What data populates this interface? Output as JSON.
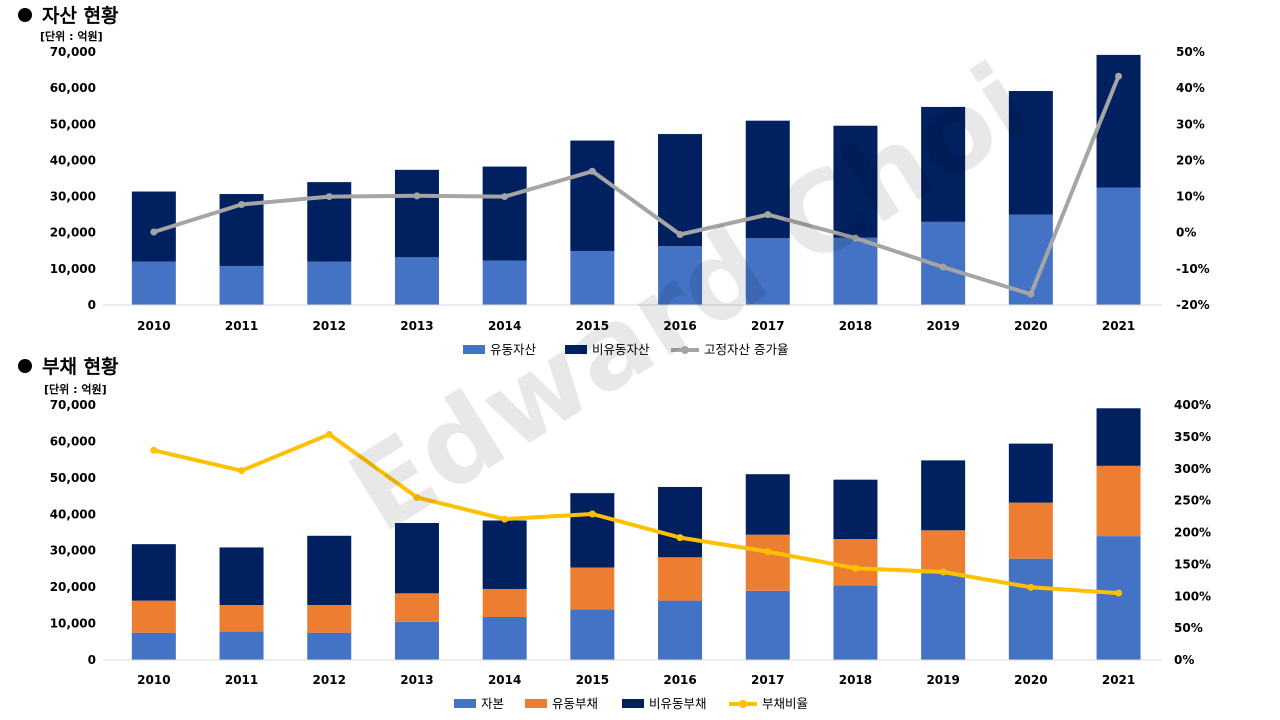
{
  "watermark": "Edward Choi",
  "chart_data": [
    {
      "type": "bar",
      "stacked": true,
      "title": "자산 현황",
      "unit_label": "[단위 : 억원]",
      "categories": [
        "2010",
        "2011",
        "2012",
        "2013",
        "2014",
        "2015",
        "2016",
        "2017",
        "2018",
        "2019",
        "2020",
        "2021"
      ],
      "y_ticks": [
        "0",
        "10,000",
        "20,000",
        "30,000",
        "40,000",
        "50,000",
        "60,000",
        "70,000"
      ],
      "ylim": [
        0,
        70000
      ],
      "y2_ticks": [
        "-20%",
        "-10%",
        "0%",
        "10%",
        "20%",
        "30%",
        "40%",
        "50%"
      ],
      "y2lim": [
        -20,
        50
      ],
      "series": [
        {
          "name": "유동자산",
          "kind": "bar",
          "axis": "left",
          "color": "#4472C4",
          "values": [
            12000,
            10800,
            12000,
            13200,
            12300,
            14900,
            16300,
            18500,
            18600,
            23000,
            25000,
            32500
          ]
        },
        {
          "name": "비유동자산",
          "kind": "bar",
          "axis": "left",
          "color": "#002060",
          "values": [
            19400,
            19900,
            22000,
            24200,
            26000,
            30600,
            31000,
            32500,
            31000,
            31800,
            34200,
            36700
          ]
        },
        {
          "name": "고정자산 증가율",
          "kind": "line",
          "axis": "right",
          "color": "#A5A5A5",
          "values": [
            0.2,
            7.8,
            10,
            10.2,
            10,
            17,
            -0.5,
            5,
            -1.5,
            -9.5,
            -17,
            43.3
          ]
        }
      ],
      "legend_position": "bottom"
    },
    {
      "type": "bar",
      "stacked": true,
      "title": "부채 현황",
      "unit_label": "[단위 : 억원]",
      "categories": [
        "2010",
        "2011",
        "2012",
        "2013",
        "2014",
        "2015",
        "2016",
        "2017",
        "2018",
        "2019",
        "2020",
        "2021"
      ],
      "y_ticks": [
        "0",
        "10,000",
        "20,000",
        "30,000",
        "40,000",
        "50,000",
        "60,000",
        "70,000"
      ],
      "ylim": [
        0,
        70000
      ],
      "y2_ticks": [
        "0%",
        "50%",
        "100%",
        "150%",
        "200%",
        "250%",
        "300%",
        "350%",
        "400%"
      ],
      "y2lim": [
        0,
        400
      ],
      "series": [
        {
          "name": "자본",
          "kind": "bar",
          "axis": "left",
          "color": "#4472C4",
          "values": [
            7500,
            7800,
            7500,
            10500,
            11800,
            13900,
            16300,
            19000,
            20500,
            23800,
            27800,
            34000
          ]
        },
        {
          "name": "유동부채",
          "kind": "bar",
          "axis": "left",
          "color": "#ED7D31",
          "values": [
            8800,
            7300,
            7600,
            7800,
            7700,
            11500,
            11900,
            15400,
            12700,
            11800,
            15400,
            19300
          ]
        },
        {
          "name": "비유동부채",
          "kind": "bar",
          "axis": "left",
          "color": "#002060",
          "values": [
            15500,
            15800,
            19000,
            19300,
            18800,
            20400,
            19300,
            16600,
            16300,
            19200,
            16200,
            15800
          ]
        },
        {
          "name": "부채비율",
          "kind": "line",
          "axis": "right",
          "color": "#FFC000",
          "values": [
            329,
            297,
            354,
            255,
            221,
            229,
            192,
            170,
            144,
            138,
            114,
            105
          ]
        }
      ],
      "legend_position": "bottom"
    }
  ]
}
